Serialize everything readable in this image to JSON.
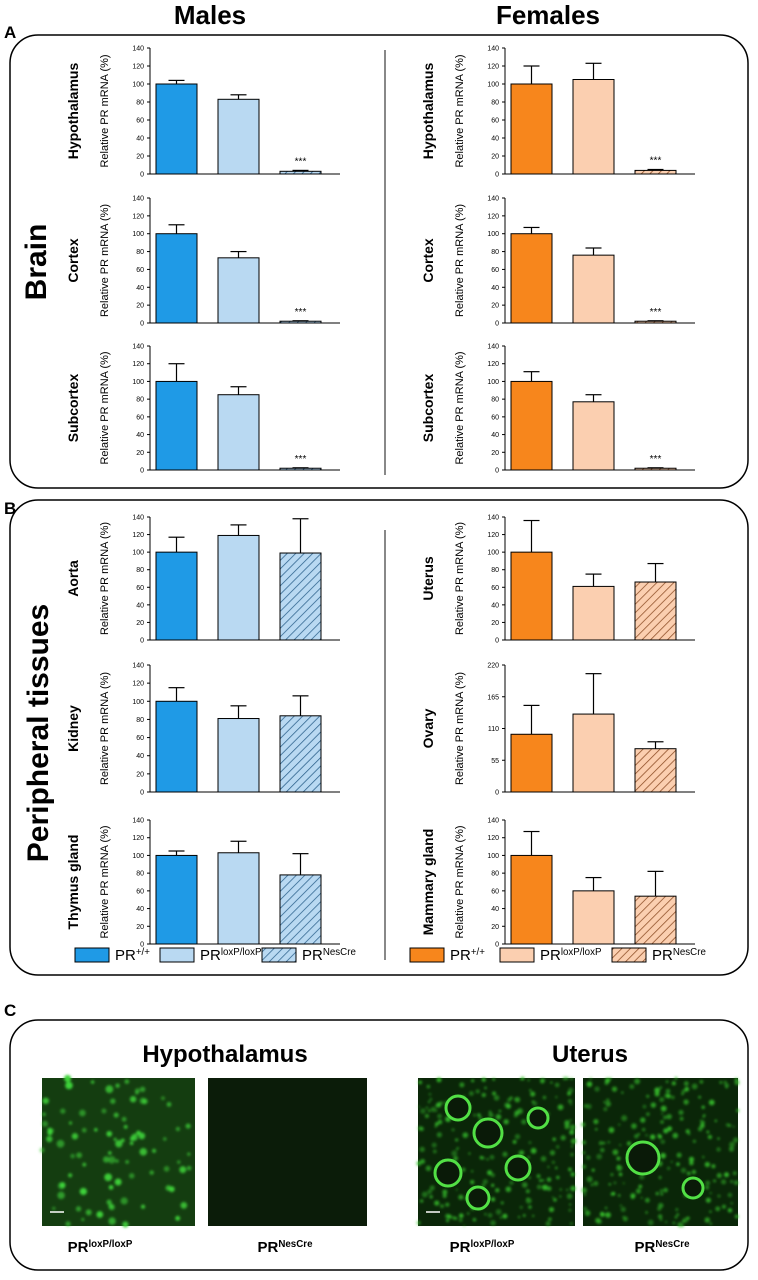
{
  "panel_labels": [
    "A",
    "B",
    "C"
  ],
  "column_titles": [
    "Males",
    "Females"
  ],
  "section_titles": [
    "Brain",
    "Peripheral tissues"
  ],
  "legends": [
    [
      {
        "name": "PR",
        "sup": "+/+",
        "color": "#1f9ae6",
        "hatch": false
      },
      {
        "name": "PR",
        "sup": "loxP/loxP",
        "color": "#b9d9f2",
        "hatch": false
      },
      {
        "name": "PR",
        "sup": "NesCre",
        "color": "#b9d9f2",
        "hatch": true
      }
    ],
    [
      {
        "name": "PR",
        "sup": "+/+",
        "color": "#f7861c",
        "hatch": false
      },
      {
        "name": "PR",
        "sup": "loxP/loxP",
        "color": "#fbcfb0",
        "hatch": false
      },
      {
        "name": "PR",
        "sup": "NesCre",
        "color": "#fbcfb0",
        "hatch": true
      }
    ]
  ],
  "chart_data": [
    {
      "type": "bar",
      "title": "Hypothalamus",
      "ylabel": "Relative PR mRNA (%)",
      "categories": [
        null,
        null,
        null
      ],
      "values": [
        100,
        83,
        3
      ],
      "errors": [
        4,
        5,
        1
      ],
      "colors": [
        "#1f9ae6",
        "#b9d9f2",
        "#b9d9f2"
      ],
      "hatch": [
        false,
        false,
        true
      ],
      "annotations": [
        {
          "index": 2,
          "text": "***"
        }
      ],
      "ylim": [
        0,
        140
      ],
      "yticks": [
        0,
        20,
        40,
        60,
        80,
        100,
        120,
        140
      ]
    },
    {
      "type": "bar",
      "title": "Cortex",
      "ylabel": "Relative PR mRNA (%)",
      "categories": [
        null,
        null,
        null
      ],
      "values": [
        100,
        73,
        2
      ],
      "errors": [
        10,
        7,
        0.5
      ],
      "colors": [
        "#1f9ae6",
        "#b9d9f2",
        "#b9d9f2"
      ],
      "hatch": [
        false,
        false,
        true
      ],
      "annotations": [
        {
          "index": 2,
          "text": "***"
        }
      ],
      "ylim": [
        0,
        140
      ],
      "yticks": [
        0,
        20,
        40,
        60,
        80,
        100,
        120,
        140
      ]
    },
    {
      "type": "bar",
      "title": "Subcortex",
      "ylabel": "Relative PR mRNA (%)",
      "categories": [
        null,
        null,
        null
      ],
      "values": [
        100,
        85,
        2
      ],
      "errors": [
        20,
        9,
        0.5
      ],
      "colors": [
        "#1f9ae6",
        "#b9d9f2",
        "#b9d9f2"
      ],
      "hatch": [
        false,
        false,
        true
      ],
      "annotations": [
        {
          "index": 2,
          "text": "***"
        }
      ],
      "ylim": [
        0,
        140
      ],
      "yticks": [
        0,
        20,
        40,
        60,
        80,
        100,
        120,
        140
      ]
    },
    {
      "type": "bar",
      "title": "Hypothalamus",
      "ylabel": "Relative PR mRNA (%)",
      "categories": [
        null,
        null,
        null
      ],
      "values": [
        100,
        105,
        4
      ],
      "errors": [
        20,
        18,
        1
      ],
      "colors": [
        "#f7861c",
        "#fbcfb0",
        "#fbcfb0"
      ],
      "hatch": [
        false,
        false,
        true
      ],
      "annotations": [
        {
          "index": 2,
          "text": "***"
        }
      ],
      "ylim": [
        0,
        140
      ],
      "yticks": [
        0,
        20,
        40,
        60,
        80,
        100,
        120,
        140
      ]
    },
    {
      "type": "bar",
      "title": "Cortex",
      "ylabel": "Relative PR mRNA (%)",
      "categories": [
        null,
        null,
        null
      ],
      "values": [
        100,
        76,
        2
      ],
      "errors": [
        7,
        8,
        0.5
      ],
      "colors": [
        "#f7861c",
        "#fbcfb0",
        "#fbcfb0"
      ],
      "hatch": [
        false,
        false,
        true
      ],
      "annotations": [
        {
          "index": 2,
          "text": "***"
        }
      ],
      "ylim": [
        0,
        140
      ],
      "yticks": [
        0,
        20,
        40,
        60,
        80,
        100,
        120,
        140
      ]
    },
    {
      "type": "bar",
      "title": "Subcortex",
      "ylabel": "Relative PR mRNA (%)",
      "categories": [
        null,
        null,
        null
      ],
      "values": [
        100,
        77,
        2
      ],
      "errors": [
        11,
        8,
        0.5
      ],
      "colors": [
        "#f7861c",
        "#fbcfb0",
        "#fbcfb0"
      ],
      "hatch": [
        false,
        false,
        true
      ],
      "annotations": [
        {
          "index": 2,
          "text": "***"
        }
      ],
      "ylim": [
        0,
        140
      ],
      "yticks": [
        0,
        20,
        40,
        60,
        80,
        100,
        120,
        140
      ]
    },
    {
      "type": "bar",
      "title": "Aorta",
      "ylabel": "Relative PR mRNA (%)",
      "categories": [
        null,
        null,
        null
      ],
      "values": [
        100,
        119,
        99
      ],
      "errors": [
        17,
        12,
        39
      ],
      "colors": [
        "#1f9ae6",
        "#b9d9f2",
        "#b9d9f2"
      ],
      "hatch": [
        false,
        false,
        true
      ],
      "ylim": [
        0,
        140
      ],
      "yticks": [
        0,
        20,
        40,
        60,
        80,
        100,
        120,
        140
      ]
    },
    {
      "type": "bar",
      "title": "Kidney",
      "ylabel": "Relative PR mRNA (%)",
      "categories": [
        null,
        null,
        null
      ],
      "values": [
        100,
        81,
        84
      ],
      "errors": [
        15,
        14,
        22
      ],
      "colors": [
        "#1f9ae6",
        "#b9d9f2",
        "#b9d9f2"
      ],
      "hatch": [
        false,
        false,
        true
      ],
      "ylim": [
        0,
        140
      ],
      "yticks": [
        0,
        20,
        40,
        60,
        80,
        100,
        120,
        140
      ]
    },
    {
      "type": "bar",
      "title": "Thymus gland",
      "ylabel": "Relative PR mRNA (%)",
      "categories": [
        null,
        null,
        null
      ],
      "values": [
        100,
        103,
        78
      ],
      "errors": [
        5,
        13,
        24
      ],
      "colors": [
        "#1f9ae6",
        "#b9d9f2",
        "#b9d9f2"
      ],
      "hatch": [
        false,
        false,
        true
      ],
      "ylim": [
        0,
        140
      ],
      "yticks": [
        0,
        20,
        40,
        60,
        80,
        100,
        120,
        140
      ]
    },
    {
      "type": "bar",
      "title": "Uterus",
      "ylabel": "Relative PR mRNA (%)",
      "categories": [
        null,
        null,
        null
      ],
      "values": [
        100,
        61,
        66
      ],
      "errors": [
        36,
        14,
        21
      ],
      "colors": [
        "#f7861c",
        "#fbcfb0",
        "#fbcfb0"
      ],
      "hatch": [
        false,
        false,
        true
      ],
      "ylim": [
        0,
        140
      ],
      "yticks": [
        0,
        20,
        40,
        60,
        80,
        100,
        120,
        140
      ]
    },
    {
      "type": "bar",
      "title": "Ovary",
      "ylabel": "Relative PR mRNA (%)",
      "categories": [
        null,
        null,
        null
      ],
      "values": [
        100,
        135,
        75
      ],
      "errors": [
        50,
        70,
        12
      ],
      "colors": [
        "#f7861c",
        "#fbcfb0",
        "#fbcfb0"
      ],
      "hatch": [
        false,
        false,
        true
      ],
      "ylim": [
        0,
        220
      ],
      "yticks": [
        0,
        55,
        110,
        165,
        220
      ]
    },
    {
      "type": "bar",
      "title": "Mammary gland",
      "ylabel": "Relative PR mRNA (%)",
      "categories": [
        null,
        null,
        null
      ],
      "values": [
        100,
        60,
        54
      ],
      "errors": [
        27,
        15,
        28
      ],
      "colors": [
        "#f7861c",
        "#fbcfb0",
        "#fbcfb0"
      ],
      "hatch": [
        false,
        false,
        true
      ],
      "ylim": [
        0,
        140
      ],
      "yticks": [
        0,
        20,
        40,
        60,
        80,
        100,
        120,
        140
      ]
    }
  ],
  "images": {
    "titles": [
      "Hypothalamus",
      "Uterus"
    ],
    "captions": [
      {
        "name": "PR",
        "sup": "loxP/loxP"
      },
      {
        "name": "PR",
        "sup": "NesCre"
      },
      {
        "name": "PR",
        "sup": "loxP/loxP"
      },
      {
        "name": "PR",
        "sup": "NesCre"
      }
    ]
  }
}
